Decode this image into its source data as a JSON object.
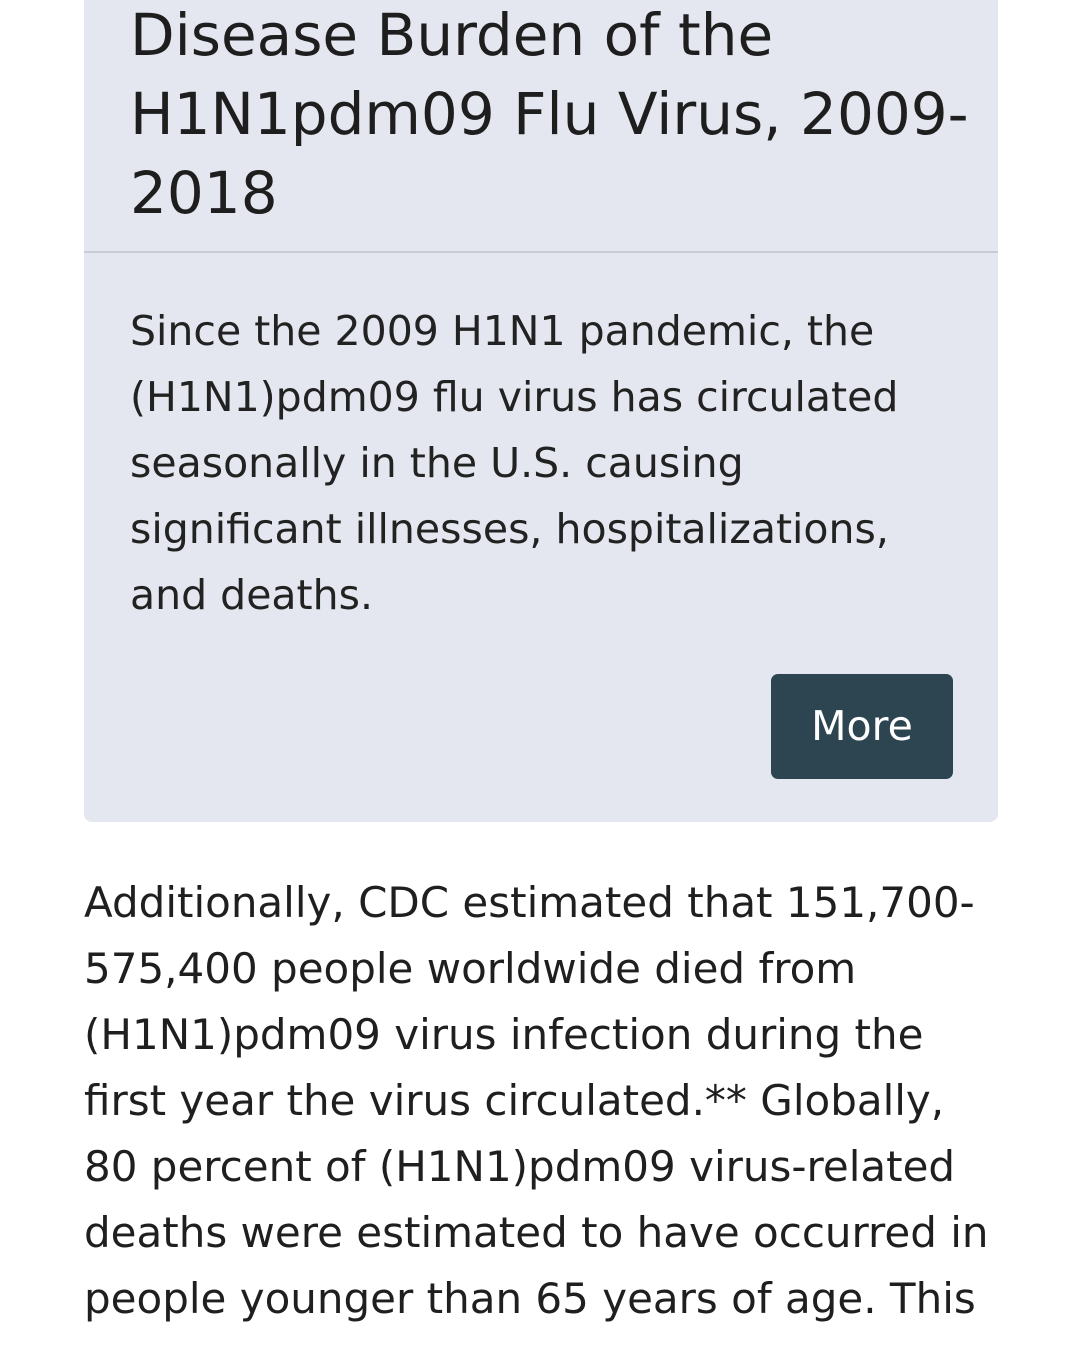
{
  "card": {
    "title": "Disease Burden of the H1N1pdm09 Flu Virus, 2009-2018",
    "summary": "Since the 2009 H1N1 pandemic, the (H1N1)pdm09 flu virus has circulated seasonally in the U.S. causing significant illnesses, hospitalizations, and deaths.",
    "more_label": "More"
  },
  "article": {
    "paragraph": "Additionally, CDC estimated that 151,700-575,400 people worldwide died from (H1N1)pdm09 virus infection during the first year the virus circulated.** Globally, 80 percent of (H1N1)pdm09 virus-related deaths were estimated to have occurred in people younger than 65 years of age. This"
  },
  "colors": {
    "card_background": "#e4e7ef",
    "button_background": "#2c4551",
    "button_text": "#ffffff",
    "text": "#1f1f1f"
  }
}
